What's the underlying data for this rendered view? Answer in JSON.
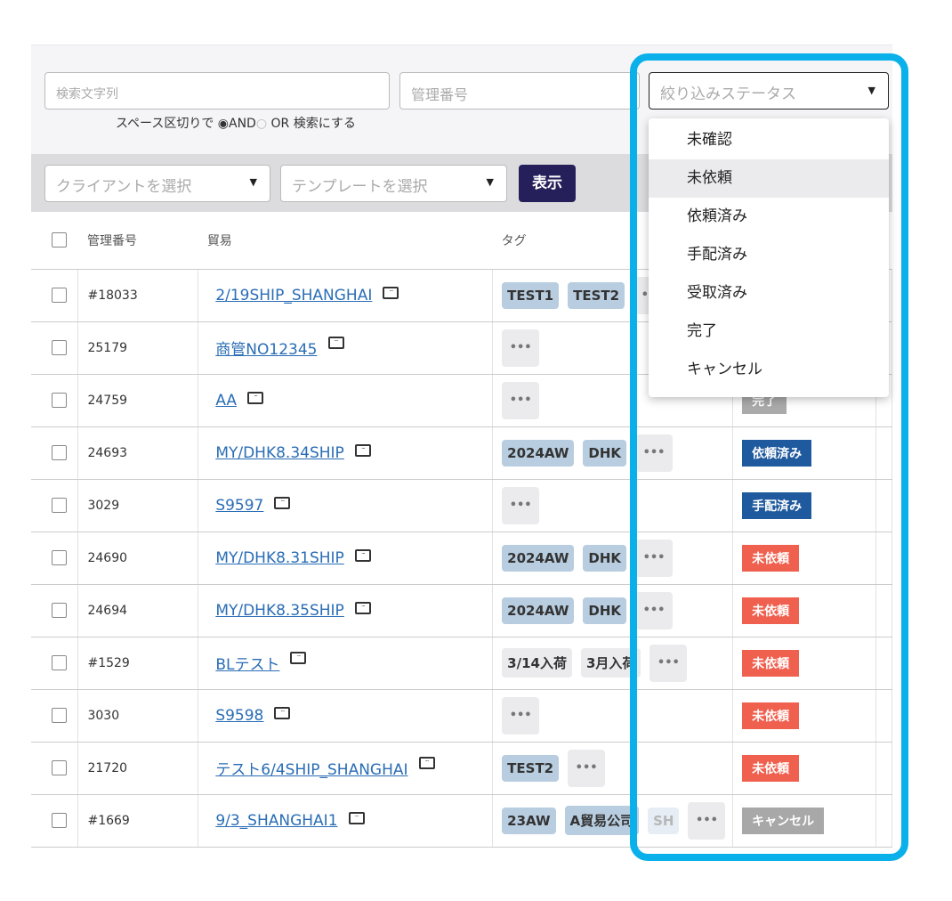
{
  "search": {
    "text_placeholder": "検索文字列",
    "id_placeholder": "管理番号",
    "hint_prefix": "スペース区切りで",
    "and_label": "AND",
    "or_label": "OR 検索にする",
    "and_selected": true
  },
  "filters": {
    "client_placeholder": "クライアントを選択",
    "template_placeholder": "テンプレートを選択",
    "show_label": "表示"
  },
  "status_filter": {
    "placeholder": "絞り込みステータス",
    "options": [
      "未確認",
      "未依頼",
      "依頼済み",
      "手配済み",
      "受取済み",
      "完了",
      "キャンセル"
    ],
    "hovered": "未依頼"
  },
  "table": {
    "headers": {
      "id": "管理番号",
      "trade": "貿易",
      "tags": "タグ"
    },
    "rows": [
      {
        "id": "#18033",
        "trade": "2/19SHIP_SHANGHAI",
        "tags": [
          "TEST1",
          "TEST2"
        ],
        "status": ""
      },
      {
        "id": "25179",
        "trade": "商管NO12345",
        "tags": [],
        "status": ""
      },
      {
        "id": "24759",
        "trade": "AA",
        "tags": [],
        "status": "完了"
      },
      {
        "id": "24693",
        "trade": "MY/DHK8.34SHIP",
        "tags": [
          "2024AW",
          "DHK"
        ],
        "status": "依頼済み"
      },
      {
        "id": "3029",
        "trade": "S9597",
        "tags": [],
        "status": "手配済み"
      },
      {
        "id": "24690",
        "trade": "MY/DHK8.31SHIP",
        "tags": [
          "2024AW",
          "DHK"
        ],
        "status": "未依頼"
      },
      {
        "id": "24694",
        "trade": "MY/DHK8.35SHIP",
        "tags": [
          "2024AW",
          "DHK"
        ],
        "status": "未依頼"
      },
      {
        "id": "#1529",
        "trade": "BLテスト",
        "tags": [
          "3/14入荷",
          "3月入荷"
        ],
        "tag_style": "gray",
        "status": "未依頼"
      },
      {
        "id": "3030",
        "trade": "S9598",
        "tags": [],
        "status": "未依頼"
      },
      {
        "id": "21720",
        "trade": "テスト6/4SHIP_SHANGHAI",
        "tags": [
          "TEST2"
        ],
        "status": "未依頼"
      },
      {
        "id": "#1669",
        "trade": "9/3_SHANGHAI1",
        "tags": [
          "23AW",
          "A貿易公司",
          "SH"
        ],
        "status": "キャンセル"
      }
    ]
  },
  "status_colors": {
    "完了": "#aaaaaa",
    "依頼済み": "#1f5a9e",
    "手配済み": "#1f5a9e",
    "未依頼": "#f0604f",
    "キャンセル": "#a8a8a8"
  },
  "icons": {
    "more": "ellipsis-icon",
    "comment": "comment-icon",
    "dropdown": "caret-down-icon"
  },
  "highlight_color": "#0ab0ea"
}
